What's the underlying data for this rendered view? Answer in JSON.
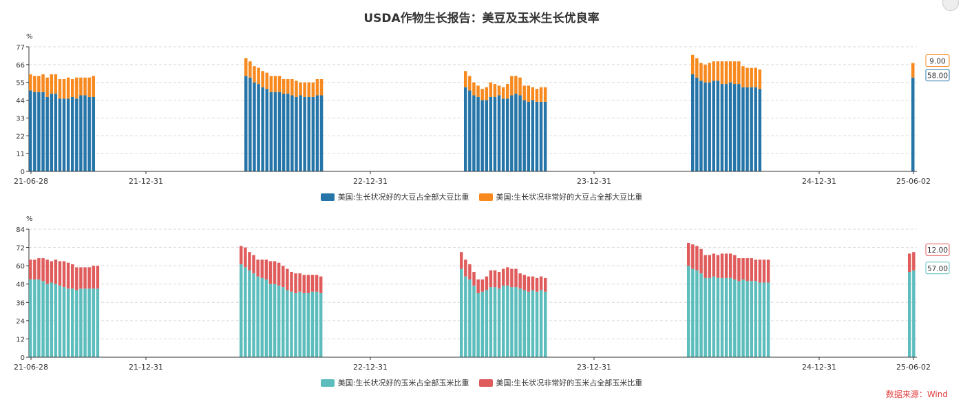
{
  "title": "USDA作物生长报告：美豆及玉米生长优良率",
  "source": "数据来源：Wind",
  "chart_data": [
    {
      "type": "bar",
      "stacked": true,
      "ylabel": "%",
      "ylim": [
        0,
        77
      ],
      "yticks": [
        0,
        11,
        22,
        33,
        44,
        55,
        66,
        77
      ],
      "xticks": [
        "21-06-28",
        "21-12-31",
        "22-12-31",
        "23-12-31",
        "24-12-31",
        "25-06-02"
      ],
      "series": [
        {
          "name": "美国:生长状况好的大豆占全部大豆比重",
          "color": "#2675a8",
          "groups": [
            [
              50,
              49,
              49,
              49,
              46,
              48,
              48,
              45,
              45,
              45,
              46,
              45,
              47,
              47,
              46,
              46
            ],
            [
              59,
              58,
              55,
              54,
              52,
              51,
              49,
              49,
              49,
              48,
              48,
              47,
              46,
              47,
              46,
              46,
              46,
              47,
              47
            ],
            [
              52,
              50,
              47,
              46,
              44,
              44,
              46,
              46,
              47,
              45,
              45,
              47,
              48,
              47,
              44,
              43,
              44,
              43,
              43,
              43
            ],
            [
              60,
              58,
              56,
              55,
              55,
              56,
              56,
              54,
              54,
              55,
              54,
              54,
              52,
              52,
              52,
              52,
              51
            ],
            [
              58
            ]
          ]
        },
        {
          "name": "美国:生长状况非常好的大豆占全部大豆比重",
          "color": "#f7891e",
          "groups": [
            [
              10,
              10,
              10,
              11,
              12,
              12,
              12,
              12,
              12,
              13,
              11,
              13,
              11,
              11,
              12,
              13
            ],
            [
              11,
              10,
              10,
              10,
              10,
              10,
              10,
              10,
              10,
              9,
              9,
              10,
              10,
              8,
              9,
              9,
              9,
              10,
              10
            ],
            [
              10,
              9,
              8,
              7,
              7,
              8,
              9,
              8,
              6,
              7,
              9,
              12,
              11,
              11,
              9,
              10,
              8,
              8,
              9,
              9
            ],
            [
              12,
              12,
              11,
              11,
              12,
              12,
              12,
              14,
              14,
              13,
              14,
              14,
              13,
              12,
              12,
              12,
              12
            ],
            [
              9
            ]
          ]
        }
      ],
      "last_labels": [
        "9.00",
        "58.00"
      ]
    },
    {
      "type": "bar",
      "stacked": true,
      "ylabel": "%",
      "ylim": [
        0,
        84
      ],
      "yticks": [
        0,
        12,
        24,
        36,
        48,
        60,
        72,
        84
      ],
      "xticks": [
        "21-06-28",
        "21-12-31",
        "22-12-31",
        "23-12-31",
        "24-12-31",
        "25-06-02"
      ],
      "series": [
        {
          "name": "美国:生长状况好的玉米占全部玉米比重",
          "color": "#5dbdbd",
          "groups": [
            [
              51,
              51,
              51,
              50,
              48,
              49,
              48,
              47,
              46,
              45,
              45,
              44,
              45,
              45,
              45,
              45,
              45
            ],
            [
              61,
              59,
              57,
              55,
              53,
              52,
              51,
              48,
              48,
              47,
              46,
              44,
              43,
              42,
              43,
              42,
              42,
              43,
              43,
              42
            ],
            [
              58,
              53,
              51,
              47,
              42,
              43,
              44,
              46,
              46,
              45,
              47,
              47,
              46,
              46,
              45,
              44,
              43,
              44,
              43,
              44,
              43
            ],
            [
              60,
              58,
              57,
              55,
              52,
              52,
              53,
              52,
              52,
              52,
              52,
              51,
              50,
              51,
              50,
              50,
              50,
              49,
              49,
              49
            ],
            [
              56,
              57
            ]
          ]
        },
        {
          "name": "美国:生长状况非常好的玉米占全部玉米比重",
          "color": "#e05c5c",
          "groups": [
            [
              13,
              13,
              14,
              15,
              16,
              14,
              16,
              16,
              17,
              17,
              16,
              15,
              14,
              14,
              14,
              15,
              15
            ],
            [
              12,
              13,
              12,
              12,
              11,
              12,
              13,
              15,
              15,
              15,
              14,
              14,
              13,
              13,
              12,
              12,
              12,
              11,
              11,
              11
            ],
            [
              11,
              11,
              10,
              9,
              9,
              8,
              9,
              11,
              11,
              11,
              11,
              12,
              12,
              12,
              10,
              10,
              10,
              9,
              9,
              9,
              9
            ],
            [
              15,
              16,
              16,
              16,
              15,
              15,
              15,
              15,
              16,
              16,
              16,
              16,
              15,
              14,
              15,
              15,
              14,
              15,
              15,
              15
            ],
            [
              12,
              12
            ]
          ]
        }
      ],
      "last_labels": [
        "12.00",
        "57.00"
      ]
    }
  ]
}
